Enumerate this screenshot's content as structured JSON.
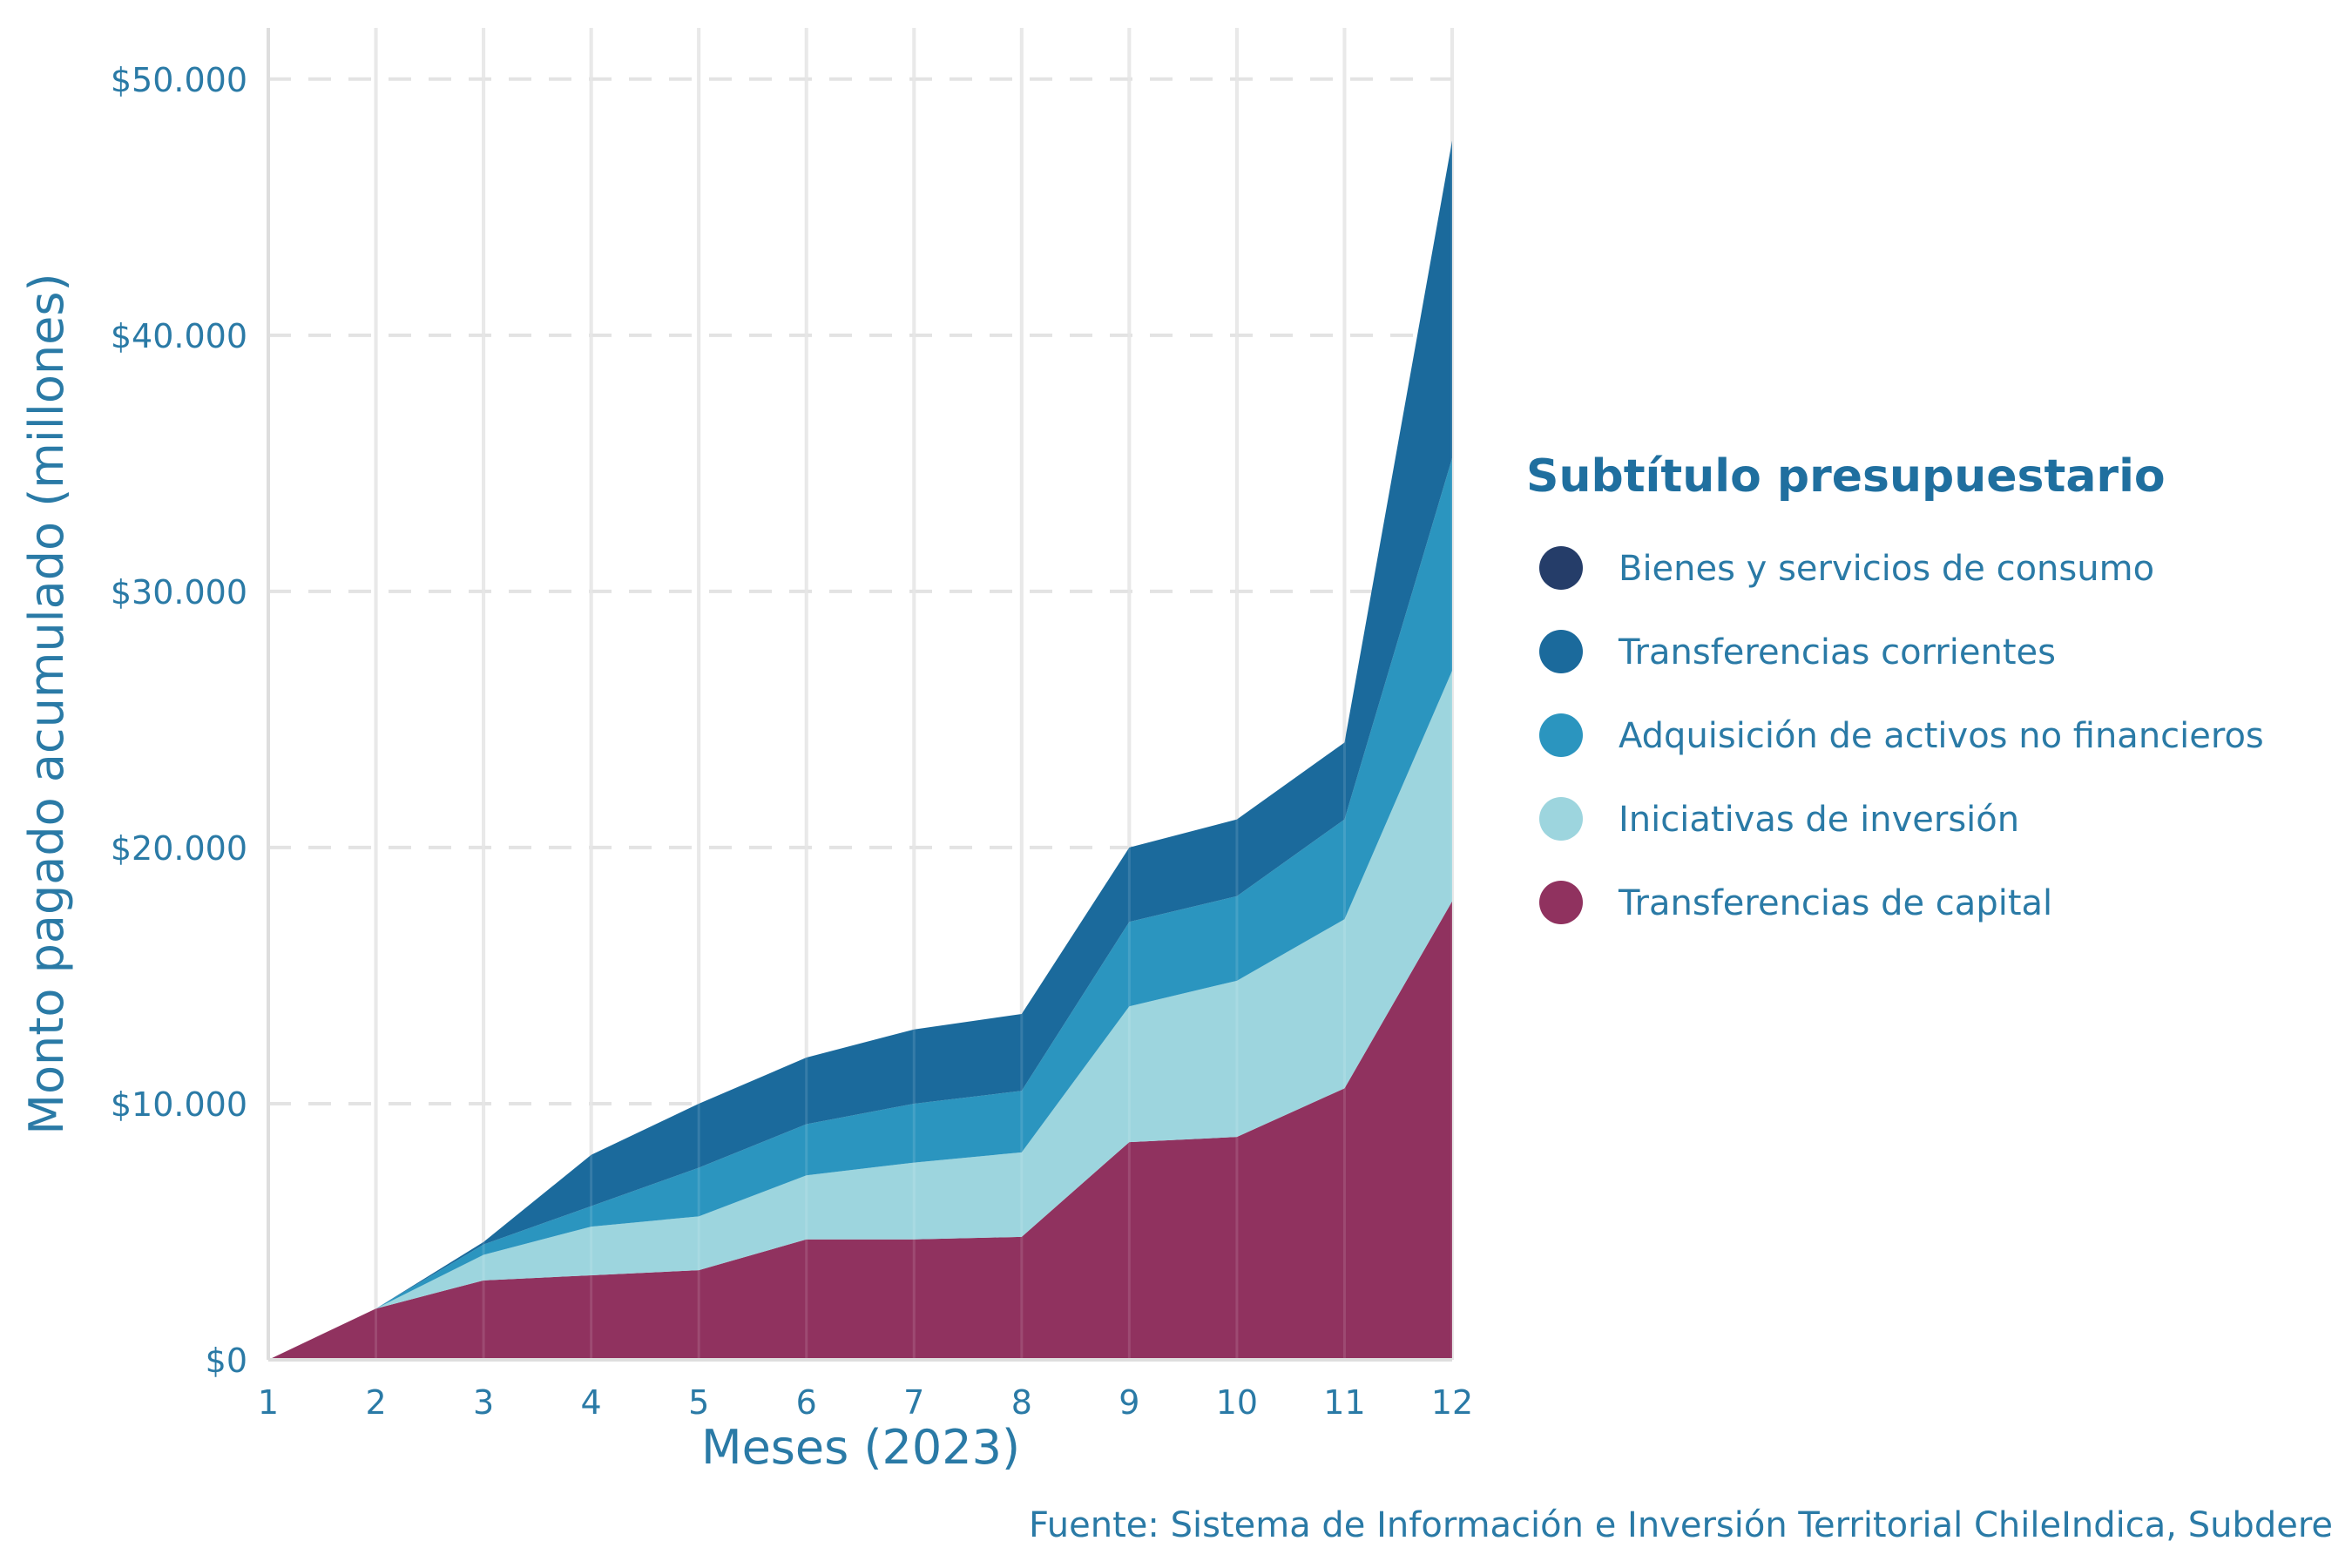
{
  "chart_data": {
    "type": "area",
    "stacked": true,
    "x": [
      1,
      2,
      3,
      4,
      5,
      6,
      7,
      8,
      9,
      10,
      11,
      12
    ],
    "xlabel": "Meses (2023)",
    "ylabel": "Monto pagado acumulado (millones)",
    "ylim": [
      0,
      52000
    ],
    "yticks": [
      0,
      10000,
      20000,
      30000,
      40000,
      50000
    ],
    "ytick_labels": [
      "$0",
      "$10.000",
      "$20.000",
      "$30.000",
      "$40.000",
      "$50.000"
    ],
    "xtick_labels": [
      "1",
      "2",
      "3",
      "4",
      "5",
      "6",
      "7",
      "8",
      "9",
      "10",
      "11",
      "12"
    ],
    "grid": true,
    "legend_position": "right",
    "legend_title": "Subtítulo presupuestario",
    "caption": "Fuente: Sistema de Información e Inversión Territorial ChileIndica, Subdere",
    "series": [
      {
        "name": "Transferencias de capital",
        "color": "#90325f",
        "values": [
          0,
          2000,
          3100,
          3300,
          3500,
          4700,
          4700,
          4800,
          8500,
          8700,
          10600,
          17900
        ]
      },
      {
        "name": "Iniciativas de inversión",
        "color": "#9dd5de",
        "values": [
          0,
          0,
          1000,
          1900,
          2100,
          2500,
          3000,
          3300,
          5300,
          6100,
          6600,
          9000
        ]
      },
      {
        "name": "Adquisición de activos no financieros",
        "color": "#2b95bf",
        "values": [
          0,
          0,
          400,
          800,
          1900,
          2000,
          2300,
          2400,
          3300,
          3300,
          3900,
          8300
        ]
      },
      {
        "name": "Transferencias corrientes",
        "color": "#1b6a9c",
        "values": [
          0,
          0,
          100,
          2000,
          2500,
          2600,
          2900,
          3000,
          2900,
          3000,
          3000,
          12400
        ]
      },
      {
        "name": "Bienes y servicios de consumo",
        "color": "#253d69",
        "values": [
          0,
          0,
          0,
          0,
          0,
          0,
          0,
          0,
          0,
          0,
          0,
          0
        ]
      }
    ],
    "legend_order": [
      "Bienes y servicios de consumo",
      "Transferencias corrientes",
      "Adquisición de activos no financieros",
      "Iniciativas de inversión",
      "Transferencias de capital"
    ]
  }
}
